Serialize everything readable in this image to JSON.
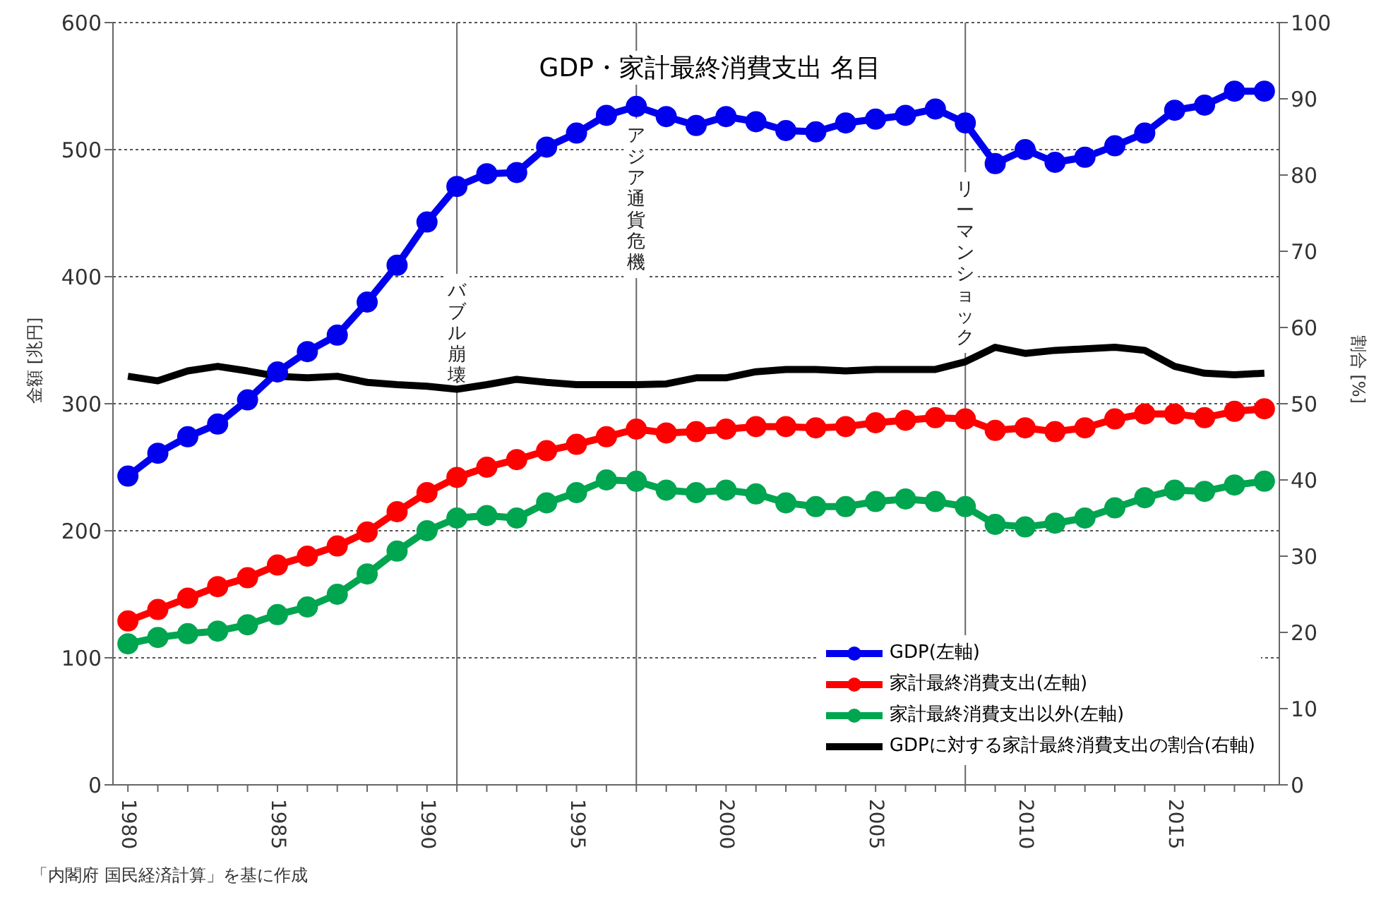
{
  "chart_data": {
    "type": "line",
    "title": "GDP・家計最終消費支出 名目",
    "ylabel": "金額 [兆円]",
    "y2label": "割合 [%]",
    "x": [
      1980,
      1981,
      1982,
      1983,
      1984,
      1985,
      1986,
      1987,
      1988,
      1989,
      1990,
      1991,
      1992,
      1993,
      1994,
      1995,
      1996,
      1997,
      1998,
      1999,
      2000,
      2001,
      2002,
      2003,
      2004,
      2005,
      2006,
      2007,
      2008,
      2009,
      2010,
      2011,
      2012,
      2013,
      2014,
      2015,
      2016,
      2017,
      2018
    ],
    "xlim": [
      1979.5,
      2018.5
    ],
    "xticks": [
      1980,
      1985,
      1990,
      1995,
      2000,
      2005,
      2010,
      2015
    ],
    "ylim": [
      0,
      600
    ],
    "yticks": [
      0,
      100,
      200,
      300,
      400,
      500,
      600
    ],
    "y2lim": [
      0,
      100
    ],
    "y2ticks": [
      0,
      10,
      20,
      30,
      40,
      50,
      60,
      70,
      80,
      90,
      100
    ],
    "grid": "y",
    "legend": "bottom right",
    "series": [
      {
        "name": "GDP(左軸)",
        "color": "#0000ee",
        "marker": "circle",
        "values": [
          243,
          261,
          274,
          284,
          303,
          325,
          341,
          354,
          380,
          409,
          443,
          471,
          481,
          482,
          502,
          513,
          527,
          534,
          526,
          519,
          526,
          522,
          515,
          514,
          521,
          524,
          527,
          532,
          521,
          489,
          500,
          490,
          494,
          503,
          513,
          531,
          535,
          546,
          546
        ]
      },
      {
        "name": "家計最終消費支出(左軸)",
        "color": "#ff0000",
        "marker": "circle",
        "values": [
          129,
          138,
          147,
          156,
          163,
          173,
          180,
          188,
          199,
          215,
          230,
          242,
          250,
          256,
          263,
          268,
          274,
          280,
          277,
          278,
          280,
          282,
          282,
          281,
          282,
          285,
          287,
          289,
          288,
          279,
          281,
          278,
          281,
          288,
          292,
          292,
          289,
          294,
          296
        ]
      },
      {
        "name": "家計最終消費支出以外(左軸)",
        "color": "#00a550",
        "marker": "circle",
        "values": [
          111,
          116,
          119,
          121,
          126,
          134,
          140,
          150,
          166,
          184,
          200,
          210,
          212,
          210,
          222,
          230,
          240,
          239,
          232,
          230,
          232,
          229,
          222,
          219,
          219,
          223,
          225,
          223,
          219,
          205,
          203,
          206,
          210,
          218,
          226,
          232,
          231,
          236,
          239
        ]
      },
      {
        "name": "GDPに対する家計最終消費支出の割合(右軸)",
        "color": "#000000",
        "marker": "none",
        "axis": "y2",
        "values": [
          53.6,
          53.0,
          54.3,
          54.9,
          54.3,
          53.6,
          53.4,
          53.6,
          52.8,
          52.5,
          52.3,
          51.9,
          52.5,
          53.2,
          52.8,
          52.5,
          52.5,
          52.5,
          52.6,
          53.4,
          53.4,
          54.2,
          54.5,
          54.5,
          54.3,
          54.5,
          54.5,
          54.5,
          55.5,
          57.4,
          56.6,
          57.0,
          57.2,
          57.4,
          57.0,
          54.9,
          54.0,
          53.8,
          54.0
        ]
      }
    ],
    "ref_lines": [
      {
        "axis": "x",
        "value": 1991,
        "label": "バブル崩壊",
        "color": "#666666"
      },
      {
        "axis": "x",
        "value": 1997,
        "label": "アジア通貨危機",
        "color": "#666666"
      },
      {
        "axis": "x",
        "value": 2008,
        "label": "リーマンショック",
        "color": "#666666"
      }
    ],
    "annotations": [
      "「内閣府 国民経済計算」を基に作成"
    ]
  }
}
